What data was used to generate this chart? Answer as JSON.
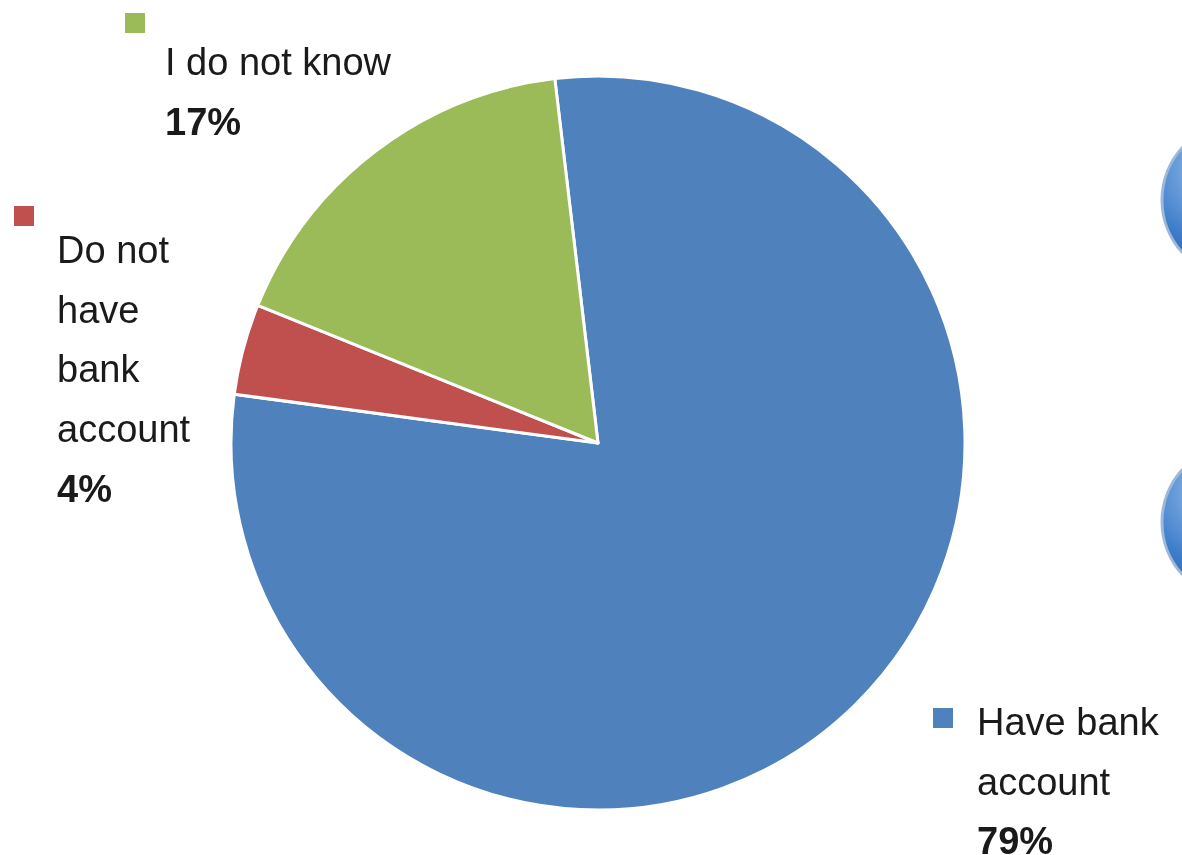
{
  "chart_data": {
    "type": "pie",
    "categories": [
      "Have bank account",
      "Do not have bank account",
      "I do not know"
    ],
    "values": [
      79,
      4,
      17
    ],
    "colors": [
      "#4f81bd",
      "#c0504d",
      "#9bbb59"
    ],
    "value_labels": [
      "79%",
      "4%",
      "17%"
    ],
    "legend": "left"
  }
}
